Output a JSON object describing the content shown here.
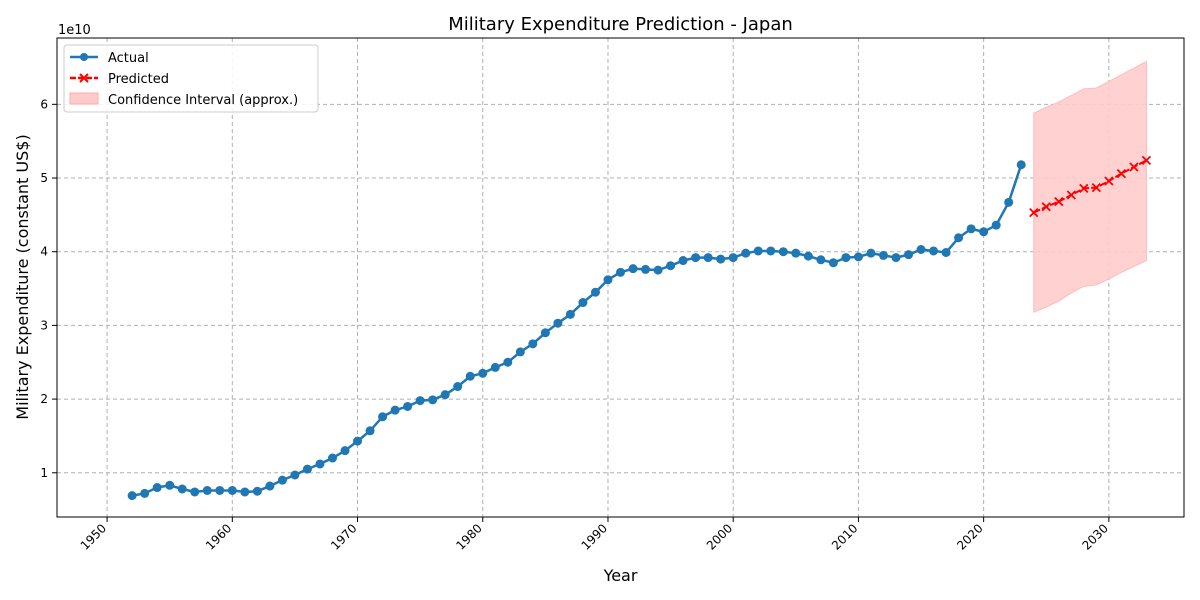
{
  "chart_data": {
    "type": "line",
    "title": "Military Expenditure Prediction - Japan",
    "xlabel": "Year",
    "ylabel": "Military Expenditure (constant US$)",
    "y_multiplier_label": "1e10",
    "xlim": [
      1946,
      2036
    ],
    "ylim": [
      0.4,
      6.9
    ],
    "x_ticks": [
      1950,
      1960,
      1970,
      1980,
      1990,
      2000,
      2010,
      2020,
      2030
    ],
    "y_ticks": [
      1,
      2,
      3,
      4,
      5,
      6
    ],
    "grid": true,
    "legend_position": "top-left",
    "colors": {
      "actual": "#1f77b4",
      "predicted": "#ff0000",
      "confidence": "#ffcccc"
    },
    "series": [
      {
        "name": "Actual",
        "x": [
          1952,
          1953,
          1954,
          1955,
          1956,
          1957,
          1958,
          1959,
          1960,
          1961,
          1962,
          1963,
          1964,
          1965,
          1966,
          1967,
          1968,
          1969,
          1970,
          1971,
          1972,
          1973,
          1974,
          1975,
          1976,
          1977,
          1978,
          1979,
          1980,
          1981,
          1982,
          1983,
          1984,
          1985,
          1986,
          1987,
          1988,
          1989,
          1990,
          1991,
          1992,
          1993,
          1994,
          1995,
          1996,
          1997,
          1998,
          1999,
          2000,
          2001,
          2002,
          2003,
          2004,
          2005,
          2006,
          2007,
          2008,
          2009,
          2010,
          2011,
          2012,
          2013,
          2014,
          2015,
          2016,
          2017,
          2018,
          2019,
          2020,
          2021,
          2022,
          2023
        ],
        "y": [
          0.69,
          0.72,
          0.8,
          0.83,
          0.78,
          0.74,
          0.76,
          0.76,
          0.76,
          0.74,
          0.75,
          0.82,
          0.9,
          0.97,
          1.05,
          1.12,
          1.2,
          1.3,
          1.43,
          1.57,
          1.76,
          1.85,
          1.9,
          1.98,
          1.99,
          2.06,
          2.17,
          2.31,
          2.35,
          2.43,
          2.5,
          2.64,
          2.75,
          2.9,
          3.03,
          3.15,
          3.31,
          3.45,
          3.62,
          3.72,
          3.77,
          3.76,
          3.75,
          3.81,
          3.88,
          3.92,
          3.92,
          3.9,
          3.92,
          3.98,
          4.01,
          4.01,
          4.0,
          3.98,
          3.94,
          3.89,
          3.85,
          3.92,
          3.93,
          3.98,
          3.95,
          3.92,
          3.96,
          4.03,
          4.01,
          3.99,
          4.19,
          4.31,
          4.27,
          4.36,
          4.67,
          5.18
        ]
      },
      {
        "name": "Predicted",
        "x": [
          2024,
          2025,
          2026,
          2027,
          2028,
          2029,
          2030,
          2031,
          2032,
          2033
        ],
        "y": [
          4.53,
          4.61,
          4.68,
          4.77,
          4.86,
          4.87,
          4.96,
          5.06,
          5.15,
          5.24
        ]
      },
      {
        "name": "Confidence Interval (approx.)",
        "x": [
          2024,
          2025,
          2026,
          2027,
          2028,
          2029,
          2030,
          2031,
          2032,
          2033
        ],
        "lower": [
          3.18,
          3.25,
          3.33,
          3.44,
          3.53,
          3.55,
          3.63,
          3.72,
          3.8,
          3.88
        ],
        "upper": [
          5.88,
          5.96,
          6.03,
          6.12,
          6.21,
          6.22,
          6.31,
          6.4,
          6.49,
          6.58
        ]
      }
    ]
  }
}
